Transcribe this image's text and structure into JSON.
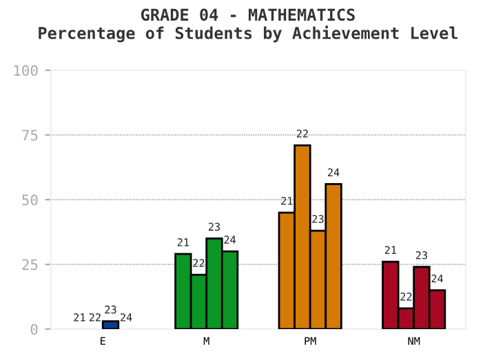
{
  "chart_data": {
    "type": "bar",
    "title": "GRADE 04 - MATHEMATICS",
    "subtitle": "Percentage of Students by Achievement Level",
    "categories": [
      "E",
      "M",
      "PM",
      "NM"
    ],
    "series": [
      {
        "name": "21",
        "colors": [
          "#0a3d8f",
          "#0b9625",
          "#d67a06",
          "#a50a22"
        ],
        "values": [
          0,
          29,
          45,
          26
        ]
      },
      {
        "name": "22",
        "colors": [
          "#0a3d8f",
          "#0b9625",
          "#d67a06",
          "#a50a22"
        ],
        "values": [
          0,
          21,
          71,
          8
        ]
      },
      {
        "name": "23",
        "colors": [
          "#0a3d8f",
          "#0b9625",
          "#d67a06",
          "#a50a22"
        ],
        "values": [
          3,
          35,
          38,
          24
        ]
      },
      {
        "name": "24",
        "colors": [
          "#0a3d8f",
          "#0b9625",
          "#d67a06",
          "#a50a22"
        ],
        "values": [
          0,
          30,
          56,
          15
        ]
      }
    ],
    "ylim": [
      0,
      100
    ],
    "yticks": [
      0,
      25,
      50,
      75,
      100
    ],
    "grid": "y",
    "legend": false
  }
}
